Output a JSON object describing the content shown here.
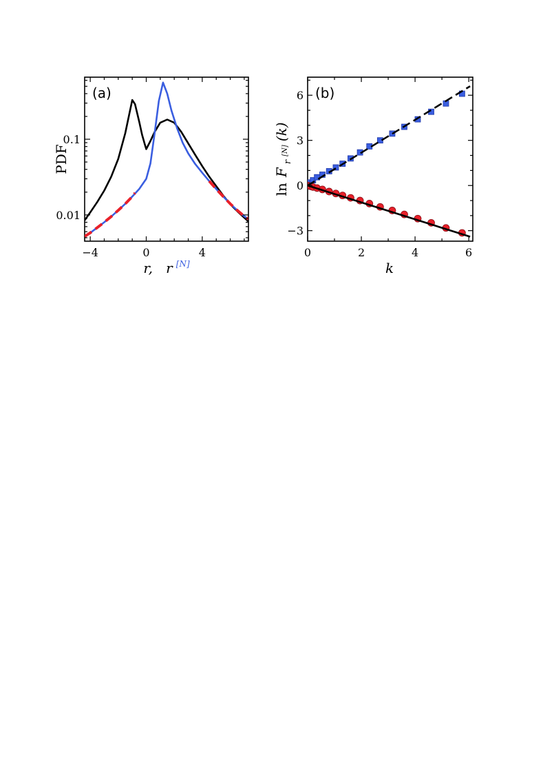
{
  "chart_data": [
    {
      "panel": "(a)",
      "type": "line",
      "ylabel": "PDF",
      "xlabel_r": "r,",
      "xlabel_rn": "r",
      "xlabel_rn_sup": "[N]",
      "xlim": [
        -4.4,
        7.3
      ],
      "ylim": [
        0.0045,
        0.66
      ],
      "yscale": "log",
      "xticks": [
        -4,
        0,
        4
      ],
      "xtick_labels": [
        "−4",
        "0",
        "4"
      ],
      "yticks": [
        0.01,
        0.1
      ],
      "ytick_labels": [
        "0.01",
        "0.1"
      ],
      "colors": {
        "black": "#000000",
        "blue": "#3a5ee0",
        "red": "#e8202a"
      },
      "series": [
        {
          "color": "black",
          "x": [
            -4.4,
            -4,
            -3.5,
            -3,
            -2.5,
            -2,
            -1.5,
            -1.2,
            -1.0,
            -0.8,
            -0.5,
            -0.3,
            -0.1,
            0,
            0.3,
            0.6,
            1,
            1.5,
            2,
            2.5,
            3,
            3.5,
            4,
            4.5,
            5,
            5.5,
            6,
            6.5,
            7,
            7.3
          ],
          "y": [
            0.0085,
            0.0108,
            0.0148,
            0.021,
            0.032,
            0.055,
            0.12,
            0.22,
            0.33,
            0.29,
            0.17,
            0.115,
            0.085,
            0.074,
            0.095,
            0.125,
            0.165,
            0.182,
            0.165,
            0.125,
            0.088,
            0.062,
            0.044,
            0.032,
            0.024,
            0.018,
            0.0138,
            0.0112,
            0.0092,
            0.0082
          ]
        },
        {
          "color": "blue",
          "x": [
            -4.4,
            -4,
            -3.5,
            -3,
            -2.5,
            -2,
            -1.5,
            -1,
            -0.5,
            0,
            0.3,
            0.6,
            0.9,
            1.2,
            1.5,
            1.8,
            2.2,
            2.6,
            3,
            3.5,
            4,
            4.5,
            5,
            5.5,
            6,
            6.5,
            7,
            7.3
          ],
          "y": [
            0.0052,
            0.0058,
            0.0068,
            0.008,
            0.0095,
            0.0115,
            0.014,
            0.0175,
            0.022,
            0.03,
            0.048,
            0.12,
            0.32,
            0.56,
            0.4,
            0.24,
            0.14,
            0.09,
            0.065,
            0.047,
            0.036,
            0.028,
            0.022,
            0.0175,
            0.014,
            0.0115,
            0.0096,
            0.0088
          ]
        },
        {
          "color": "red",
          "style": "dashed",
          "x": [
            -4.4,
            -4,
            -3.5,
            -3,
            -2.5,
            -2,
            -1.5,
            -1,
            -0.8
          ],
          "y": [
            0.0052,
            0.0058,
            0.0068,
            0.008,
            0.0095,
            0.0115,
            0.014,
            0.0175,
            0.0195
          ]
        },
        {
          "color": "red",
          "style": "dashed",
          "x": [
            4.5,
            5,
            5.5,
            6,
            6.5,
            7,
            7.3
          ],
          "y": [
            0.028,
            0.022,
            0.0175,
            0.014,
            0.0115,
            0.0096,
            0.0088
          ]
        }
      ]
    },
    {
      "panel": "(b)",
      "type": "scatter",
      "ylabel_main": "ln",
      "ylabel_F": "F",
      "ylabel_sub": "r",
      "ylabel_subsup": "[N]",
      "ylabel_arg": "(k)",
      "xlabel": "k",
      "xlim": [
        0,
        6.15
      ],
      "ylim": [
        -3.7,
        7.2
      ],
      "xticks": [
        0,
        2,
        4,
        6
      ],
      "xtick_labels": [
        "0",
        "2",
        "4",
        "6"
      ],
      "yticks": [
        -3,
        0,
        3,
        6
      ],
      "ytick_labels": [
        "−3",
        "0",
        "3",
        "6"
      ],
      "colors": {
        "blue": "#3a5ee0",
        "red": "#e8202a",
        "line": "#000000"
      },
      "series": [
        {
          "marker": "square",
          "color": "blue",
          "x": [
            0,
            0.08,
            0.2,
            0.35,
            0.55,
            0.8,
            1.05,
            1.3,
            1.6,
            1.95,
            2.3,
            2.7,
            3.15,
            3.6,
            4.1,
            4.6,
            5.15,
            5.75
          ],
          "y": [
            0,
            0.2,
            0.35,
            0.55,
            0.72,
            0.95,
            1.2,
            1.45,
            1.8,
            2.2,
            2.6,
            3.0,
            3.45,
            3.9,
            4.4,
            4.9,
            5.45,
            6.1
          ]
        },
        {
          "marker": "circle",
          "color": "red",
          "x": [
            0,
            0.1,
            0.2,
            0.35,
            0.55,
            0.8,
            1.05,
            1.3,
            1.6,
            1.95,
            2.3,
            2.7,
            3.15,
            3.6,
            4.1,
            4.6,
            5.15,
            5.75
          ],
          "y": [
            0,
            -0.05,
            -0.1,
            -0.17,
            -0.26,
            -0.4,
            -0.53,
            -0.66,
            -0.82,
            -1.0,
            -1.2,
            -1.42,
            -1.66,
            -1.92,
            -2.2,
            -2.48,
            -2.82,
            -3.15
          ]
        },
        {
          "line": "dashed",
          "fit": "blue",
          "x": [
            0,
            6.05
          ],
          "y": [
            0,
            6.6
          ]
        },
        {
          "line": "solid",
          "fit": "red",
          "x": [
            0,
            6.05
          ],
          "y": [
            0,
            -3.4
          ]
        }
      ]
    }
  ]
}
